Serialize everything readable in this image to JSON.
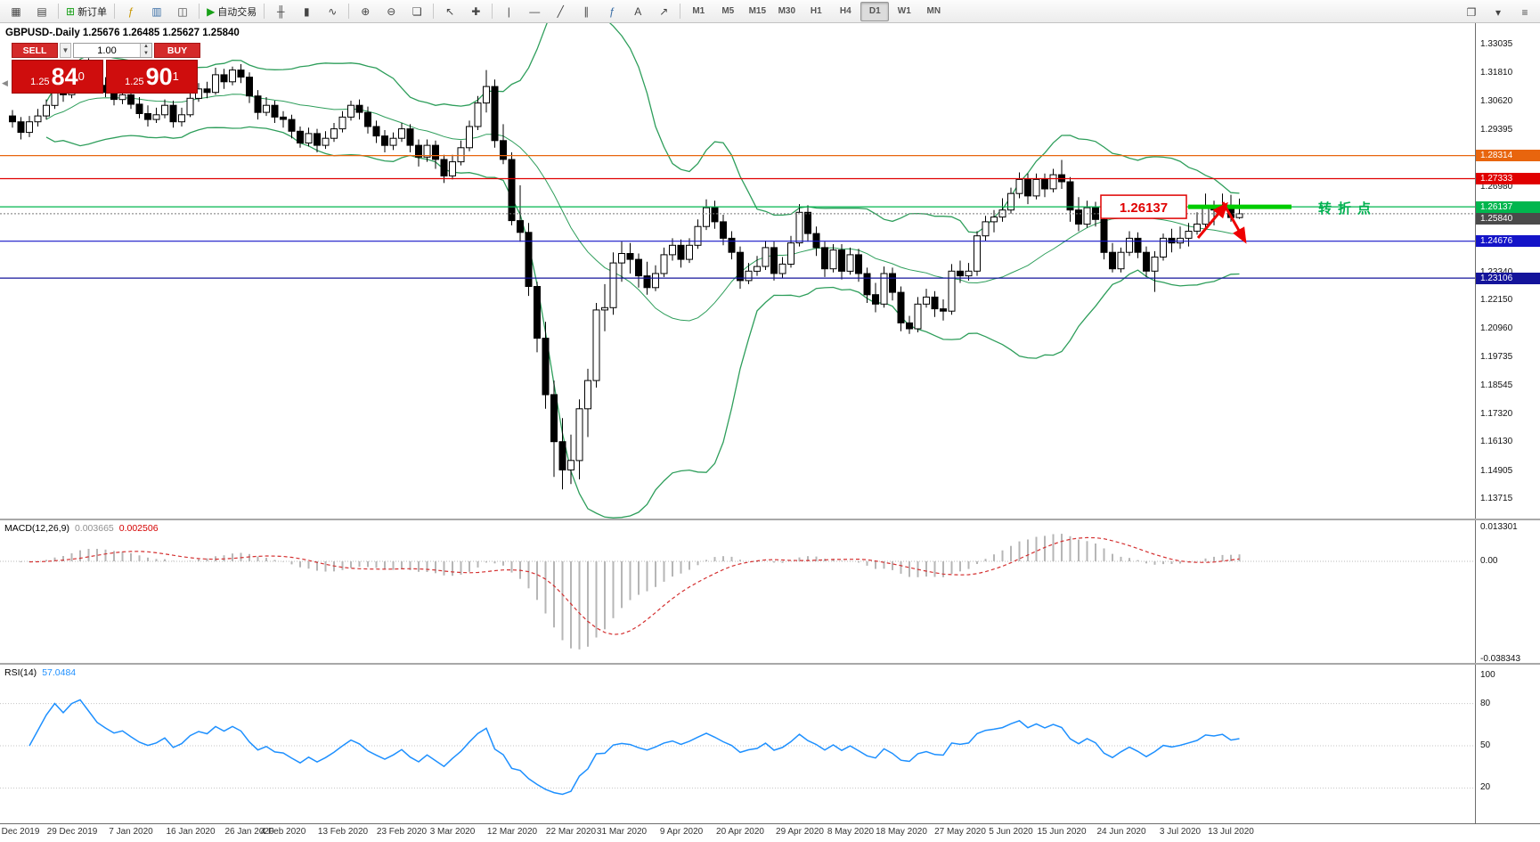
{
  "toolbar": {
    "groups": [
      [
        {
          "name": "charts-toggle-button",
          "glyph": "▦"
        },
        {
          "name": "market-watch-button",
          "glyph": "▤"
        }
      ],
      [
        {
          "name": "new-order-button",
          "glyph": "⊞",
          "gcls": "g-green",
          "label": "新订单"
        }
      ],
      [
        {
          "name": "indicators-button",
          "glyph": "ƒ",
          "gcls": "g-gold"
        },
        {
          "name": "profiles-button",
          "glyph": "▥",
          "gcls": "g-blue"
        },
        {
          "name": "data-window-button",
          "glyph": "◫"
        }
      ],
      [
        {
          "name": "autotrading-button",
          "glyph": "▶",
          "gcls": "g-green",
          "label": "自动交易"
        }
      ],
      [
        {
          "name": "bar-chart-button",
          "glyph": "╫"
        },
        {
          "name": "candlestick-chart-button",
          "glyph": "▮"
        },
        {
          "name": "line-chart-button",
          "glyph": "∿"
        }
      ],
      [
        {
          "name": "zoom-in-button",
          "glyph": "⊕"
        },
        {
          "name": "zoom-out-button",
          "glyph": "⊖"
        },
        {
          "name": "tile-windows-button",
          "glyph": "❏"
        }
      ],
      [
        {
          "name": "cursor-button",
          "glyph": "↖"
        },
        {
          "name": "crosshair-button",
          "glyph": "✚"
        }
      ],
      [
        {
          "name": "vertical-line-button",
          "glyph": "|"
        },
        {
          "name": "horizontal-line-button",
          "glyph": "—"
        },
        {
          "name": "trendline-button",
          "glyph": "╱"
        },
        {
          "name": "channel-button",
          "glyph": "∥"
        },
        {
          "name": "fibonacci-button",
          "glyph": "ƒ",
          "gcls": "g-blue"
        },
        {
          "name": "text-button",
          "glyph": "A"
        },
        {
          "name": "arrow-tool-button",
          "glyph": "↗"
        }
      ],
      [
        {
          "name": "tf-m1",
          "text": "M1"
        },
        {
          "name": "tf-m5",
          "text": "M5"
        },
        {
          "name": "tf-m15",
          "text": "M15"
        },
        {
          "name": "tf-m30",
          "text": "M30"
        },
        {
          "name": "tf-h1",
          "text": "H1"
        },
        {
          "name": "tf-h4",
          "text": "H4"
        },
        {
          "name": "tf-d1",
          "text": "D1",
          "active": true
        },
        {
          "name": "tf-w1",
          "text": "W1"
        },
        {
          "name": "tf-mn",
          "text": "MN"
        }
      ]
    ],
    "right_icons": [
      {
        "name": "chart-list-button",
        "glyph": "❐"
      },
      {
        "name": "dropdown-button",
        "glyph": "▾"
      },
      {
        "name": "more-button",
        "glyph": "≡"
      }
    ]
  },
  "chart": {
    "symbol_header": "GBPUSD-.Daily  1.25676 1.26485 1.25627 1.25840",
    "one_click": {
      "sell_label": "SELL",
      "buy_label": "BUY",
      "volume": "1.00",
      "sell_prefix": "1.25",
      "sell_big": "84",
      "sell_sup": "0",
      "buy_prefix": "1.25",
      "buy_big": "90",
      "buy_sup": "1"
    }
  },
  "chart_data": {
    "type": "candlestick",
    "symbol": "GBPUSD",
    "timeframe": "Daily",
    "current_bar": {
      "open": 1.25676,
      "high": 1.26485,
      "low": 1.25627,
      "close": 1.2584
    },
    "y_ticks": [
      "1.33035",
      "1.31810",
      "1.30620",
      "1.29395",
      "1.28170",
      "1.26980",
      "1.25755",
      "1.24565",
      "1.23340",
      "1.22150",
      "1.20960",
      "1.19735",
      "1.18545",
      "1.17320",
      "1.16130",
      "1.14905",
      "1.13715"
    ],
    "y_tick_values": [
      1.33035,
      1.3181,
      1.3062,
      1.29395,
      1.2817,
      1.2698,
      1.25755,
      1.24565,
      1.2334,
      1.2215,
      1.2096,
      1.19735,
      1.18545,
      1.1732,
      1.1613,
      1.14905,
      1.13715
    ],
    "hlines": [
      {
        "price": 1.28314,
        "label": "1.28314",
        "color": "#e8650e"
      },
      {
        "price": 1.27333,
        "label": "1.27333",
        "color": "#e00000"
      },
      {
        "price": 1.26137,
        "label": "1.26137",
        "color": "#00b64e"
      },
      {
        "price": 1.24676,
        "label": "1.24676",
        "color": "#1414c8"
      },
      {
        "price": 1.23106,
        "label": "1.23106",
        "color": "#14149b"
      }
    ],
    "bid_line": {
      "price": 1.2584,
      "label": "1.25840",
      "color": "#4a4a4a"
    },
    "bollinger": {
      "period": 20,
      "deviation": 2,
      "color": "#2e9e5b"
    },
    "macd": {
      "name": "MACD(12,26,9)",
      "value_main": "0.003665",
      "value_signal": "0.002506",
      "axis": [
        "0.013301",
        "0.00",
        "-0.038343"
      ],
      "axis_values": [
        0.013301,
        0,
        -0.038343
      ],
      "hist_color": "#b6b6b6",
      "signal_color": "#d43030"
    },
    "rsi": {
      "name": "RSI(14)",
      "value": "57.0484",
      "axis": [
        "100",
        "80",
        "50",
        "20"
      ],
      "axis_values": [
        100,
        80,
        50,
        20
      ],
      "levels": [
        80,
        50,
        20
      ],
      "color": "#1e90ff"
    },
    "annotations": {
      "price_label": "1.26137",
      "price_label_color": "#e00000",
      "segment_price": 1.26137,
      "segment_color": "#00cc00",
      "arrow_color": "#ee0000",
      "note": "转折点",
      "note_color": "#00b050"
    },
    "x_labels": [
      "Dec 2019",
      "29 Dec 2019",
      "7 Jan 2020",
      "16 Jan 2020",
      "26 Jan 2020",
      "4 Feb 2020",
      "13 Feb 2020",
      "23 Feb 2020",
      "3 Mar 2020",
      "12 Mar 2020",
      "22 Mar 2020",
      "31 Mar 2020",
      "9 Apr 2020",
      "20 Apr 2020",
      "29 Apr 2020",
      "8 May 2020",
      "18 May 2020",
      "27 May 2020",
      "5 Jun 2020",
      "15 Jun 2020",
      "24 Jun 2020",
      "3 Jul 2020",
      "13 Jul 2020"
    ],
    "x_label_indices": [
      1,
      7,
      14,
      21,
      28,
      32,
      39,
      46,
      52,
      59,
      66,
      72,
      79,
      86,
      93,
      99,
      105,
      112,
      118,
      124,
      131,
      138,
      144
    ],
    "ohlc": [
      [
        1.3,
        1.3025,
        1.295,
        1.2975
      ],
      [
        1.2975,
        1.2995,
        1.29,
        1.293
      ],
      [
        1.293,
        1.3,
        1.291,
        1.2975
      ],
      [
        1.2975,
        1.303,
        1.2955,
        1.3
      ],
      [
        1.3,
        1.307,
        1.2985,
        1.3045
      ],
      [
        1.3045,
        1.313,
        1.303,
        1.311
      ],
      [
        1.311,
        1.314,
        1.306,
        1.309
      ],
      [
        1.309,
        1.319,
        1.3075,
        1.317
      ],
      [
        1.317,
        1.324,
        1.314,
        1.322
      ],
      [
        1.322,
        1.3245,
        1.315,
        1.318
      ],
      [
        1.318,
        1.3205,
        1.311,
        1.313
      ],
      [
        1.313,
        1.3165,
        1.308,
        1.31
      ],
      [
        1.31,
        1.3135,
        1.3045,
        1.307
      ],
      [
        1.307,
        1.312,
        1.305,
        1.309
      ],
      [
        1.309,
        1.3115,
        1.303,
        1.305
      ],
      [
        1.305,
        1.308,
        1.299,
        1.301
      ],
      [
        1.301,
        1.3045,
        1.2955,
        1.2985
      ],
      [
        1.2985,
        1.3035,
        1.297,
        1.3005
      ],
      [
        1.3005,
        1.307,
        1.299,
        1.3045
      ],
      [
        1.3045,
        1.3065,
        1.295,
        1.2975
      ],
      [
        1.2975,
        1.3035,
        1.2955,
        1.3005
      ],
      [
        1.3005,
        1.3095,
        1.2995,
        1.3075
      ],
      [
        1.3075,
        1.314,
        1.306,
        1.3115
      ],
      [
        1.3115,
        1.3145,
        1.3075,
        1.31
      ],
      [
        1.31,
        1.3205,
        1.309,
        1.3175
      ],
      [
        1.3175,
        1.32,
        1.3115,
        1.3145
      ],
      [
        1.3145,
        1.321,
        1.313,
        1.3195
      ],
      [
        1.3195,
        1.322,
        1.314,
        1.3165
      ],
      [
        1.3165,
        1.3185,
        1.3055,
        1.3085
      ],
      [
        1.3085,
        1.311,
        1.2985,
        1.3015
      ],
      [
        1.3015,
        1.308,
        1.3,
        1.3045
      ],
      [
        1.3045,
        1.3065,
        1.297,
        1.2995
      ],
      [
        1.2995,
        1.302,
        1.295,
        1.2985
      ],
      [
        1.2985,
        1.3005,
        1.2905,
        1.2935
      ],
      [
        1.2935,
        1.2955,
        1.2865,
        1.2885
      ],
      [
        1.2885,
        1.295,
        1.287,
        1.2925
      ],
      [
        1.2925,
        1.2945,
        1.2845,
        1.2875
      ],
      [
        1.2875,
        1.2935,
        1.286,
        1.2905
      ],
      [
        1.2905,
        1.297,
        1.289,
        1.2945
      ],
      [
        1.2945,
        1.302,
        1.293,
        1.2995
      ],
      [
        1.2995,
        1.3065,
        1.298,
        1.3045
      ],
      [
        1.3045,
        1.307,
        1.2985,
        1.3015
      ],
      [
        1.3015,
        1.304,
        1.2925,
        1.2955
      ],
      [
        1.2955,
        1.298,
        1.2885,
        1.2915
      ],
      [
        1.2915,
        1.294,
        1.2845,
        1.2875
      ],
      [
        1.2875,
        1.293,
        1.2855,
        1.2905
      ],
      [
        1.2905,
        1.297,
        1.289,
        1.2945
      ],
      [
        1.2945,
        1.2965,
        1.2845,
        1.2875
      ],
      [
        1.2875,
        1.29,
        1.2785,
        1.2825
      ],
      [
        1.2825,
        1.29,
        1.2805,
        1.2875
      ],
      [
        1.2875,
        1.2895,
        1.2775,
        1.2815
      ],
      [
        1.2815,
        1.2835,
        1.2715,
        1.2745
      ],
      [
        1.2745,
        1.2835,
        1.273,
        1.2805
      ],
      [
        1.2805,
        1.2895,
        1.279,
        1.2865
      ],
      [
        1.2865,
        1.298,
        1.285,
        1.2955
      ],
      [
        1.2955,
        1.3085,
        1.294,
        1.3055
      ],
      [
        1.3055,
        1.3195,
        1.3015,
        1.3125
      ],
      [
        1.3125,
        1.3155,
        1.2865,
        1.2895
      ],
      [
        1.2895,
        1.2965,
        1.2795,
        1.2815
      ],
      [
        1.2815,
        1.2845,
        1.2535,
        1.2555
      ],
      [
        1.2555,
        1.2705,
        1.2465,
        1.2505
      ],
      [
        1.2505,
        1.2545,
        1.2235,
        1.2275
      ],
      [
        1.2275,
        1.2295,
        1.1995,
        1.2055
      ],
      [
        1.2055,
        1.2125,
        1.1755,
        1.1815
      ],
      [
        1.1815,
        1.1875,
        1.1465,
        1.1615
      ],
      [
        1.1615,
        1.1715,
        1.1412,
        1.1495
      ],
      [
        1.1495,
        1.1645,
        1.1435,
        1.1535
      ],
      [
        1.1535,
        1.1795,
        1.1455,
        1.1755
      ],
      [
        1.1755,
        1.1925,
        1.1635,
        1.1875
      ],
      [
        1.1875,
        1.2205,
        1.1845,
        1.2175
      ],
      [
        1.2175,
        1.2285,
        1.2085,
        1.2185
      ],
      [
        1.2185,
        1.242,
        1.2155,
        1.2375
      ],
      [
        1.2375,
        1.2465,
        1.2295,
        1.2415
      ],
      [
        1.2415,
        1.246,
        1.233,
        1.239
      ],
      [
        1.239,
        1.2415,
        1.227,
        1.232
      ],
      [
        1.232,
        1.238,
        1.224,
        1.227
      ],
      [
        1.227,
        1.2365,
        1.2255,
        1.233
      ],
      [
        1.233,
        1.244,
        1.2315,
        1.241
      ],
      [
        1.241,
        1.248,
        1.2385,
        1.245
      ],
      [
        1.245,
        1.2475,
        1.2355,
        1.239
      ],
      [
        1.239,
        1.248,
        1.2375,
        1.245
      ],
      [
        1.245,
        1.256,
        1.2435,
        1.253
      ],
      [
        1.253,
        1.2645,
        1.2515,
        1.261
      ],
      [
        1.261,
        1.264,
        1.252,
        1.255
      ],
      [
        1.255,
        1.258,
        1.245,
        1.248
      ],
      [
        1.248,
        1.251,
        1.239,
        1.242
      ],
      [
        1.242,
        1.2445,
        1.2265,
        1.23
      ],
      [
        1.23,
        1.2375,
        1.2285,
        1.234
      ],
      [
        1.234,
        1.2405,
        1.232,
        1.236
      ],
      [
        1.236,
        1.247,
        1.2345,
        1.244
      ],
      [
        1.244,
        1.2465,
        1.23,
        1.233
      ],
      [
        1.233,
        1.24,
        1.231,
        1.237
      ],
      [
        1.237,
        1.249,
        1.2355,
        1.246
      ],
      [
        1.246,
        1.2625,
        1.2445,
        1.259
      ],
      [
        1.259,
        1.262,
        1.2465,
        1.25
      ],
      [
        1.25,
        1.253,
        1.2405,
        1.244
      ],
      [
        1.244,
        1.2465,
        1.2315,
        1.235
      ],
      [
        1.235,
        1.2455,
        1.2335,
        1.243
      ],
      [
        1.243,
        1.2455,
        1.2305,
        1.234
      ],
      [
        1.234,
        1.244,
        1.2325,
        1.241
      ],
      [
        1.241,
        1.2435,
        1.2295,
        1.233
      ],
      [
        1.233,
        1.2355,
        1.2205,
        1.224
      ],
      [
        1.224,
        1.229,
        1.2165,
        1.22
      ],
      [
        1.22,
        1.236,
        1.2185,
        1.233
      ],
      [
        1.233,
        1.2355,
        1.2215,
        1.225
      ],
      [
        1.225,
        1.2275,
        1.2085,
        1.212
      ],
      [
        1.212,
        1.215,
        1.2073,
        1.2095
      ],
      [
        1.2095,
        1.223,
        1.208,
        1.22
      ],
      [
        1.22,
        1.2265,
        1.2185,
        1.223
      ],
      [
        1.223,
        1.2255,
        1.2145,
        1.218
      ],
      [
        1.218,
        1.222,
        1.213,
        1.217
      ],
      [
        1.217,
        1.237,
        1.2155,
        1.234
      ],
      [
        1.234,
        1.2385,
        1.229,
        1.232
      ],
      [
        1.232,
        1.2375,
        1.23,
        1.234
      ],
      [
        1.234,
        1.251,
        1.232,
        1.249
      ],
      [
        1.249,
        1.2575,
        1.247,
        1.255
      ],
      [
        1.255,
        1.26,
        1.2505,
        1.257
      ],
      [
        1.257,
        1.265,
        1.255,
        1.26
      ],
      [
        1.26,
        1.2695,
        1.2585,
        1.267
      ],
      [
        1.267,
        1.276,
        1.265,
        1.273
      ],
      [
        1.273,
        1.2755,
        1.2625,
        1.266
      ],
      [
        1.266,
        1.2755,
        1.2645,
        1.273
      ],
      [
        1.273,
        1.2755,
        1.2655,
        1.269
      ],
      [
        1.269,
        1.2775,
        1.2675,
        1.275
      ],
      [
        1.275,
        1.2813,
        1.269,
        1.272
      ],
      [
        1.272,
        1.274,
        1.255,
        1.26
      ],
      [
        1.26,
        1.2655,
        1.251,
        1.254
      ],
      [
        1.254,
        1.264,
        1.2525,
        1.261
      ],
      [
        1.261,
        1.2635,
        1.253,
        1.256
      ],
      [
        1.256,
        1.259,
        1.239,
        1.242
      ],
      [
        1.242,
        1.246,
        1.2335,
        1.235
      ],
      [
        1.235,
        1.244,
        1.2335,
        1.242
      ],
      [
        1.242,
        1.251,
        1.2405,
        1.248
      ],
      [
        1.248,
        1.2505,
        1.2395,
        1.242
      ],
      [
        1.242,
        1.2445,
        1.2315,
        1.234
      ],
      [
        1.234,
        1.2425,
        1.2252,
        1.24
      ],
      [
        1.24,
        1.25,
        1.2385,
        1.248
      ],
      [
        1.248,
        1.252,
        1.242,
        1.246
      ],
      [
        1.246,
        1.253,
        1.2435,
        1.248
      ],
      [
        1.248,
        1.2545,
        1.2445,
        1.251
      ],
      [
        1.251,
        1.259,
        1.2495,
        1.254
      ],
      [
        1.254,
        1.267,
        1.252,
        1.261
      ],
      [
        1.261,
        1.264,
        1.2535,
        1.26
      ],
      [
        1.26,
        1.267,
        1.258,
        1.262
      ],
      [
        1.262,
        1.2665,
        1.255,
        1.2568
      ],
      [
        1.25676,
        1.26485,
        1.25627,
        1.2584
      ]
    ]
  }
}
